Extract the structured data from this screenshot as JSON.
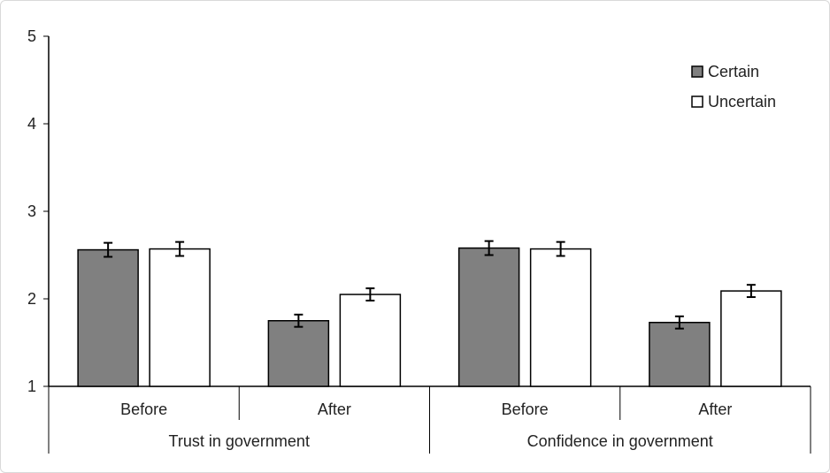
{
  "chart_data": {
    "type": "bar",
    "title": "",
    "xlabel": "",
    "ylabel": "",
    "ylim": [
      1,
      5
    ],
    "yticks": [
      1,
      2,
      3,
      4,
      5
    ],
    "groups": [
      {
        "label": "Trust in government",
        "categories": [
          "Before",
          "After"
        ]
      },
      {
        "label": "Confidence in government",
        "categories": [
          "Before",
          "After"
        ]
      }
    ],
    "categories": [
      "Before",
      "After",
      "Before",
      "After"
    ],
    "series": [
      {
        "name": "Certain",
        "color": "#808080",
        "values": [
          2.56,
          1.75,
          2.58,
          1.73
        ],
        "errors": [
          0.08,
          0.07,
          0.08,
          0.07
        ]
      },
      {
        "name": "Uncertain",
        "color": "#ffffff",
        "values": [
          2.57,
          2.05,
          2.57,
          2.09
        ],
        "errors": [
          0.08,
          0.07,
          0.08,
          0.07
        ]
      }
    ],
    "grid": false,
    "legend_position": "top-right"
  }
}
